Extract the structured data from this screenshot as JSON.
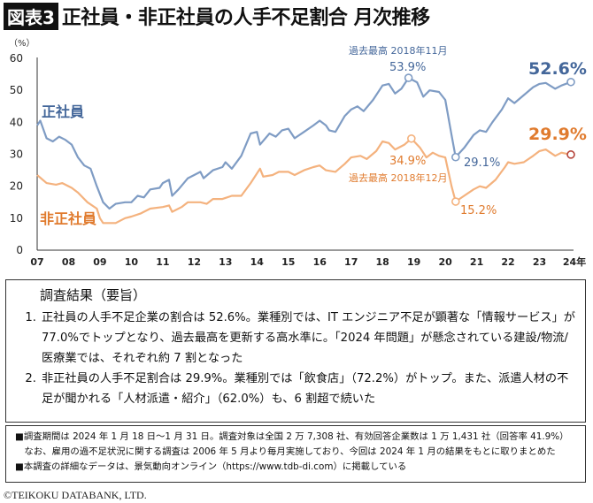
{
  "title": {
    "badge": "図表3",
    "text": "正社員・非正社員の人手不足割合 月次推移"
  },
  "chart_data": {
    "type": "line",
    "ylabel": "（%）",
    "ylim": [
      0,
      60
    ],
    "yticks": [
      0,
      10,
      20,
      30,
      40,
      50,
      60
    ],
    "xlim": [
      2007,
      2024
    ],
    "xtick_labels": [
      "07",
      "08",
      "09",
      "10",
      "11",
      "12",
      "13",
      "14",
      "15",
      "16",
      "17",
      "18",
      "19",
      "20",
      "21",
      "22",
      "23",
      "24年"
    ],
    "grid": false,
    "series": [
      {
        "name": "正社員",
        "color": "#7f9cc4",
        "label_color": "#44679a",
        "x": [
          2007.0,
          2007.1,
          2007.3,
          2007.5,
          2007.7,
          2007.9,
          2008.1,
          2008.3,
          2008.5,
          2008.7,
          2008.9,
          2009.1,
          2009.3,
          2009.5,
          2009.8,
          2010.0,
          2010.2,
          2010.4,
          2010.6,
          2010.9,
          2011.0,
          2011.2,
          2011.3,
          2011.5,
          2011.8,
          2012.0,
          2012.2,
          2012.3,
          2012.6,
          2012.9,
          2013.0,
          2013.2,
          2013.5,
          2013.8,
          2014.0,
          2014.1,
          2014.4,
          2014.6,
          2014.8,
          2015.0,
          2015.2,
          2015.5,
          2015.8,
          2016.0,
          2016.2,
          2016.3,
          2016.5,
          2016.8,
          2017.0,
          2017.2,
          2017.4,
          2017.7,
          2018.0,
          2018.2,
          2018.4,
          2018.6,
          2018.83,
          2019.1,
          2019.3,
          2019.5,
          2019.8,
          2020.0,
          2020.2,
          2020.33,
          2020.6,
          2020.9,
          2021.1,
          2021.3,
          2021.5,
          2021.8,
          2022.0,
          2022.2,
          2022.5,
          2022.8,
          2023.0,
          2023.2,
          2023.5,
          2023.7,
          2024.0
        ],
        "y": [
          39,
          40.5,
          35,
          34,
          35.5,
          34.5,
          33,
          29,
          26.5,
          25.5,
          20,
          15,
          13,
          14.5,
          15,
          15,
          17,
          16.5,
          19,
          19.5,
          21,
          22,
          17,
          19,
          22.5,
          23.5,
          24.5,
          22.5,
          25,
          26,
          27.5,
          25.5,
          29.5,
          36.5,
          37,
          33,
          36.5,
          35.5,
          37.5,
          38,
          35,
          37,
          39,
          40.5,
          39,
          37.5,
          37,
          42,
          44,
          45,
          43.5,
          47,
          51.5,
          52,
          49,
          50.5,
          53.9,
          52.5,
          48,
          50,
          49.5,
          47,
          36,
          29.1,
          32,
          36,
          37.5,
          37,
          40,
          44,
          47.5,
          46,
          48.5,
          51,
          52,
          52.3,
          50.5,
          51.5,
          52.6
        ]
      },
      {
        "name": "非正社員",
        "color": "#f4b27e",
        "label_color": "#e07b2e",
        "x": [
          2007.0,
          2007.3,
          2007.6,
          2007.8,
          2008.1,
          2008.3,
          2008.6,
          2008.9,
          2009.0,
          2009.1,
          2009.5,
          2009.8,
          2010.0,
          2010.3,
          2010.6,
          2011.0,
          2011.2,
          2011.3,
          2011.6,
          2011.8,
          2012.2,
          2012.4,
          2012.6,
          2012.9,
          2013.2,
          2013.5,
          2013.8,
          2014.0,
          2014.1,
          2014.2,
          2014.5,
          2014.7,
          2015.0,
          2015.2,
          2015.5,
          2015.8,
          2016.0,
          2016.2,
          2016.5,
          2016.8,
          2017.0,
          2017.3,
          2017.5,
          2017.8,
          2018.0,
          2018.2,
          2018.4,
          2018.7,
          2018.92,
          2019.2,
          2019.4,
          2019.6,
          2019.8,
          2020.0,
          2020.2,
          2020.33,
          2020.6,
          2020.9,
          2021.1,
          2021.3,
          2021.6,
          2021.9,
          2022.0,
          2022.2,
          2022.5,
          2022.8,
          2023.0,
          2023.2,
          2023.5,
          2023.7,
          2024.0
        ],
        "y": [
          23.5,
          21,
          20.5,
          21,
          19.5,
          18,
          15,
          13,
          10,
          8.5,
          8.5,
          10,
          10.5,
          11.5,
          13,
          13.5,
          14,
          12,
          13.5,
          15,
          15,
          14.5,
          16,
          16,
          17,
          17,
          21,
          24,
          25.5,
          23,
          23.5,
          24.5,
          24.5,
          23.5,
          25,
          26,
          26.5,
          25,
          24.5,
          27,
          29,
          29.5,
          28.5,
          31,
          34,
          33.5,
          31.5,
          33,
          34.9,
          32,
          29,
          30.5,
          29.5,
          29,
          20,
          15.2,
          17,
          19,
          20,
          19.5,
          22,
          26,
          27.5,
          27,
          27.5,
          29.5,
          31,
          31.5,
          29.5,
          30.5,
          29.9
        ]
      }
    ],
    "annotations": {
      "regular_peak_title": "過去最高 2018年11月",
      "regular_peak": "53.9%",
      "regular_low": "29.1%",
      "regular_latest": "52.6%",
      "nonregular_peak_title": "過去最高 2018年12月",
      "nonregular_peak": "34.9%",
      "nonregular_low": "15.2%",
      "nonregular_latest": "29.9%"
    }
  },
  "summary": {
    "heading": "調査結果（要旨）",
    "items": [
      {
        "num": "1.",
        "text": "正社員の人手不足企業の割合は 52.6%。業種別では、IT エンジニア不足が顕著な「情報サービス」が 77.0%でトップとなり、過去最高を更新する高水準に。「2024 年問題」が懸念されている建設/物流/医療業では、それぞれ約 7 割となった"
      },
      {
        "num": "2.",
        "text": "非正社員の人手不足割合は 29.9%。業種別では「飲食店」（72.2%）がトップ。また、派遣人材の不足が聞かれる「人材派遣・紹介」（62.0%）も、6 割超で続いた"
      }
    ]
  },
  "notes": [
    "■調査期間は 2024 年 1 月 18 日～1 月 31 日。調査対象は全国 2 万 7,308 社、有効回答企業数は 1 万 1,431 社（回答率 41.9%）",
    "　なお、雇用の過不足状況に関する調査は 2006 年 5 月より毎月実施しており、今回は 2024 年 1 月の結果をもとに取りまとめた",
    "■本調査の詳細なデータは、景気動向オンライン（https://www.tdb-di.com）に掲載している"
  ],
  "copyright": "©TEIKOKU DATABANK, LTD."
}
